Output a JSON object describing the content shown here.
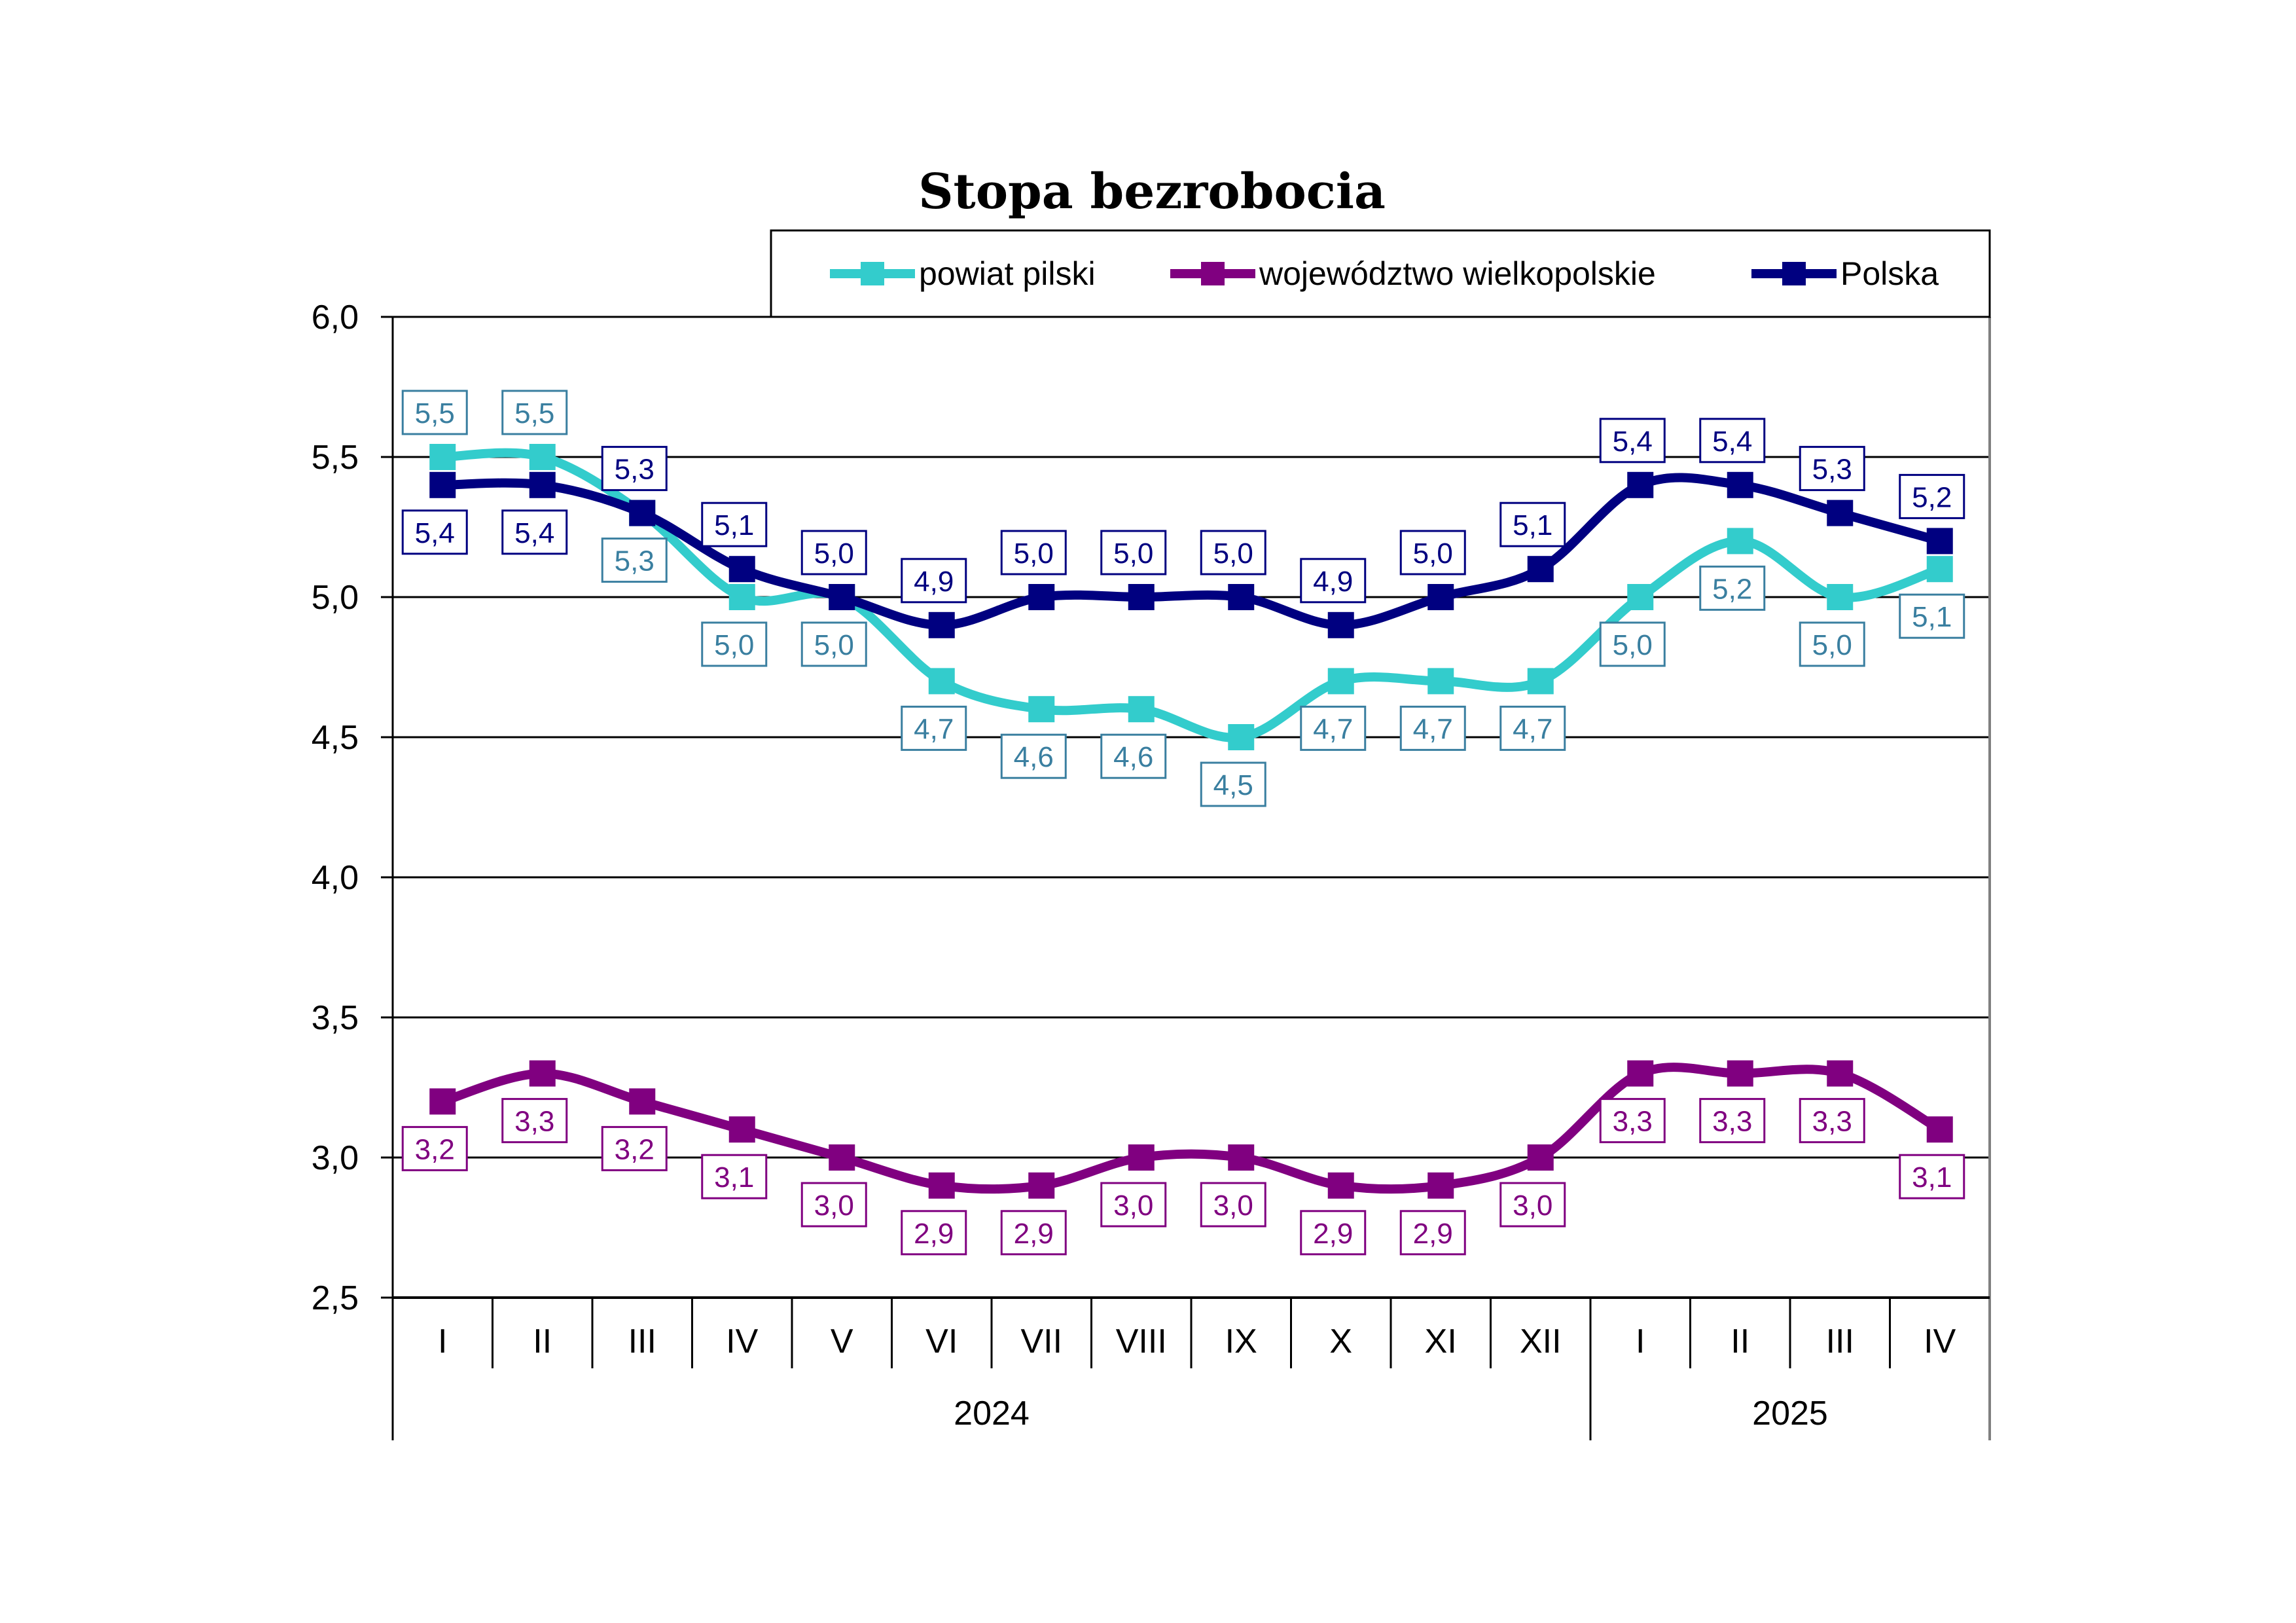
{
  "chart_data": {
    "type": "line",
    "title": "Stopa bezrobocia",
    "xlabel": "",
    "ylabel": "",
    "ylim": [
      2.5,
      6.0
    ],
    "y_ticks": [
      "6,0",
      "5,5",
      "5,0",
      "4,5",
      "4,0",
      "3,5",
      "3,0",
      "2,5"
    ],
    "y_tick_values": [
      6.0,
      5.5,
      5.0,
      4.5,
      4.0,
      3.5,
      3.0,
      2.5
    ],
    "categories": [
      "I",
      "II",
      "III",
      "IV",
      "V",
      "VI",
      "VII",
      "VIII",
      "IX",
      "X",
      "XI",
      "XII",
      "I",
      "II",
      "III",
      "IV"
    ],
    "year_groups": [
      {
        "label": "2024",
        "start": 0,
        "end": 11
      },
      {
        "label": "2025",
        "start": 12,
        "end": 15
      }
    ],
    "grid": true,
    "legend_position": "top",
    "series": [
      {
        "name": "powiat pilski",
        "color": "#33CCCC",
        "label_color": "#3A7FA0",
        "values": [
          5.5,
          5.5,
          5.3,
          5.0,
          5.0,
          4.7,
          4.6,
          4.6,
          4.5,
          4.7,
          4.7,
          4.7,
          5.0,
          5.2,
          5.0,
          5.1
        ],
        "labels": [
          "5,5",
          "5,5",
          "5,3",
          "5,0",
          "5,0",
          "4,7",
          "4,6",
          "4,6",
          "4,5",
          "4,7",
          "4,7",
          "4,7",
          "5,0",
          "5,2",
          "5,0",
          "5,1"
        ],
        "label_side": [
          "above",
          "above",
          "below",
          "below",
          "below",
          "below",
          "below",
          "below",
          "below",
          "below",
          "below",
          "below",
          "below",
          "below",
          "below",
          "below"
        ]
      },
      {
        "name": "województwo wielkopolskie",
        "color": "#800080",
        "label_color": "#800080",
        "values": [
          3.2,
          3.3,
          3.2,
          3.1,
          3.0,
          2.9,
          2.9,
          3.0,
          3.0,
          2.9,
          2.9,
          3.0,
          3.3,
          3.3,
          3.3,
          3.1
        ],
        "labels": [
          "3,2",
          "3,3",
          "3,2",
          "3,1",
          "3,0",
          "2,9",
          "2,9",
          "3,0",
          "3,0",
          "2,9",
          "2,9",
          "3,0",
          "3,3",
          "3,3",
          "3,3",
          "3,1"
        ],
        "label_side": [
          "below",
          "below",
          "below",
          "below",
          "below",
          "below",
          "below",
          "below",
          "below",
          "below",
          "below",
          "below",
          "below",
          "below",
          "below",
          "below"
        ]
      },
      {
        "name": "Polska",
        "color": "#000080",
        "label_color": "#000080",
        "values": [
          5.4,
          5.4,
          5.3,
          5.1,
          5.0,
          4.9,
          5.0,
          5.0,
          5.0,
          4.9,
          5.0,
          5.1,
          5.4,
          5.4,
          5.3,
          5.2
        ],
        "labels": [
          "5,4",
          "5,4",
          "5,3",
          "5,1",
          "5,0",
          "4,9",
          "5,0",
          "5,0",
          "5,0",
          "4,9",
          "5,0",
          "5,1",
          "5,4",
          "5,4",
          "5,3",
          "5,2"
        ],
        "label_side": [
          "below",
          "below",
          "above",
          "above",
          "above",
          "above",
          "above",
          "above",
          "above",
          "above",
          "above",
          "above",
          "above",
          "above",
          "above",
          "above"
        ]
      }
    ]
  }
}
